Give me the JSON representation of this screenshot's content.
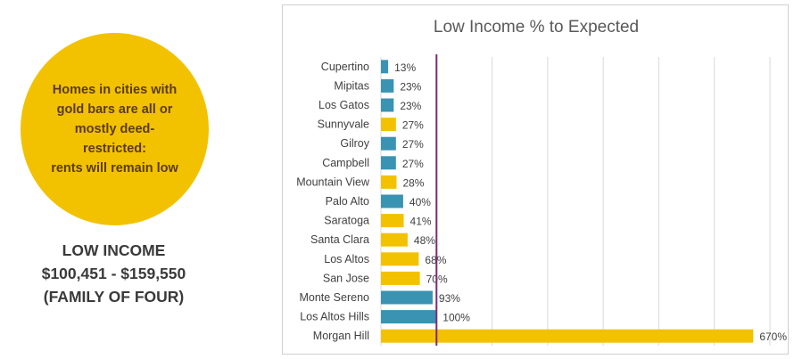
{
  "callout": {
    "text": "Homes in cities with\ngold bars are all or\nmostly deed-\nrestricted:\nrents will remain low"
  },
  "income": {
    "line1": "LOW INCOME",
    "line2": "$100,451 - $159,550",
    "line3": "(FAMILY OF FOUR)"
  },
  "colors": {
    "teal": "#3a93b3",
    "gold": "#f2c200",
    "marker": "#7b2a7a",
    "circle": "#f2c200"
  },
  "chart_data": {
    "type": "bar",
    "orientation": "horizontal",
    "title": "Low Income % to Expected",
    "xlabel": "",
    "ylabel": "",
    "xlim": [
      0,
      700
    ],
    "grid": true,
    "reference_line": 100,
    "categories": [
      "Cupertino",
      "Mipitas",
      "Los Gatos",
      "Sunnyvale",
      "Gilroy",
      "Campbell",
      "Mountain View",
      "Palo Alto",
      "Saratoga",
      "Santa Clara",
      "Los Altos",
      "San Jose",
      "Monte Sereno",
      "Los Altos Hills",
      "Morgan Hill"
    ],
    "values": [
      13,
      23,
      23,
      27,
      27,
      27,
      28,
      40,
      41,
      48,
      68,
      70,
      93,
      100,
      670
    ],
    "labels": [
      "13%",
      "23%",
      "23%",
      "27%",
      "27%",
      "27%",
      "28%",
      "40%",
      "41%",
      "48%",
      "68%",
      "70%",
      "93%",
      "100%",
      "670%"
    ],
    "bar_colors": [
      "teal",
      "teal",
      "teal",
      "gold",
      "teal",
      "teal",
      "gold",
      "teal",
      "gold",
      "gold",
      "gold",
      "gold",
      "teal",
      "teal",
      "gold"
    ]
  }
}
